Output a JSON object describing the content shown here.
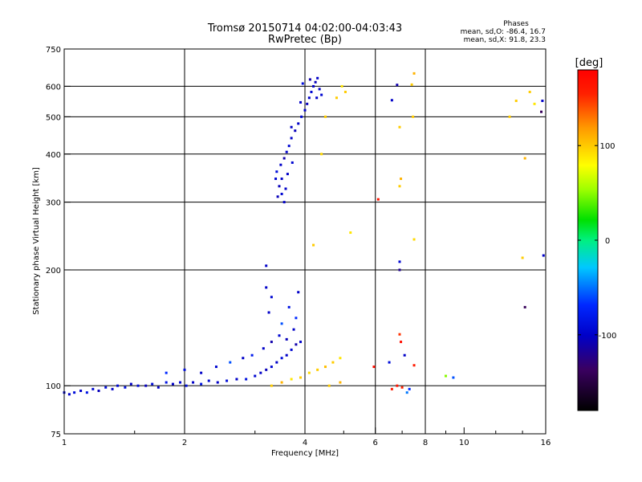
{
  "chart_data": {
    "type": "scatter",
    "title": "Tromsø 20150714 04:02:00-04:03:43",
    "subtitle": "RwPretec (Bp)",
    "xlabel": "Frequency [MHz]",
    "ylabel": "Stationary phase Virtual Height [km]",
    "x_scale": "log",
    "y_scale": "log",
    "xlim": [
      1,
      16
    ],
    "ylim": [
      75,
      750
    ],
    "x_ticks": [
      1,
      2,
      4,
      6,
      8,
      10,
      16
    ],
    "x_tick_labels": [
      "1",
      "2",
      "4",
      "6",
      "8",
      "10",
      "16"
    ],
    "y_ticks": [
      75,
      100,
      200,
      300,
      400,
      500,
      600,
      750
    ],
    "y_tick_labels": [
      "75",
      "100",
      "200",
      "300",
      "400",
      "500",
      "600",
      "750"
    ],
    "x_gridlines": [
      2,
      4,
      6,
      8
    ],
    "y_gridlines": [
      100,
      200,
      300,
      400,
      500,
      600
    ],
    "minor_x_ticks": [
      1.5,
      3,
      5,
      7,
      9,
      12,
      14
    ],
    "color_metric": "phase [deg]",
    "stats_header": "Phases",
    "stats_o": "mean, sd,O: -86.4, 16.7",
    "stats_x": "mean, sd,X:  91.8, 23.3",
    "colorbar": {
      "label": "[deg]",
      "range": [
        -180,
        180
      ],
      "ticks": [
        100,
        0,
        -100
      ],
      "tick_labels": [
        "100",
        "0",
        "-100"
      ]
    },
    "series": [
      {
        "points": [
          [
            1.0,
            96,
            -95
          ],
          [
            1.03,
            95,
            -100
          ],
          [
            1.06,
            96,
            -90
          ],
          [
            1.1,
            97,
            -100
          ],
          [
            1.14,
            96,
            -85
          ],
          [
            1.18,
            98,
            -95
          ],
          [
            1.22,
            97,
            -105
          ],
          [
            1.27,
            99,
            -90
          ],
          [
            1.32,
            98,
            -100
          ],
          [
            1.36,
            100,
            -95
          ],
          [
            1.42,
            99,
            -88
          ],
          [
            1.47,
            101,
            -100
          ],
          [
            1.53,
            100,
            -92
          ],
          [
            1.6,
            100,
            -104
          ],
          [
            1.66,
            101,
            -90
          ],
          [
            1.72,
            99,
            -100
          ],
          [
            1.8,
            102,
            -86
          ],
          [
            1.87,
            101,
            -100
          ],
          [
            1.95,
            102,
            -95
          ],
          [
            2.02,
            100,
            -90
          ],
          [
            2.1,
            102,
            -100
          ],
          [
            2.2,
            101,
            -85
          ],
          [
            2.3,
            103,
            -95
          ],
          [
            2.42,
            102,
            -100
          ],
          [
            2.55,
            103,
            -92
          ],
          [
            2.7,
            104,
            -100
          ],
          [
            2.85,
            104,
            -88
          ],
          [
            3.0,
            106,
            -95
          ],
          [
            3.1,
            108,
            -100
          ],
          [
            3.2,
            110,
            -105
          ],
          [
            3.3,
            112,
            -95
          ],
          [
            3.4,
            115,
            -100
          ],
          [
            3.5,
            118,
            -90
          ],
          [
            3.6,
            120,
            -100
          ],
          [
            3.7,
            124,
            -95
          ],
          [
            3.8,
            128,
            -110
          ],
          [
            3.9,
            130,
            -100
          ],
          [
            1.8,
            108,
            -70
          ],
          [
            2.0,
            110,
            -90
          ],
          [
            2.2,
            108,
            -100
          ],
          [
            2.4,
            112,
            -95
          ],
          [
            2.6,
            115,
            -60
          ],
          [
            2.8,
            118,
            -100
          ],
          [
            2.95,
            120,
            -80
          ],
          [
            3.15,
            125,
            -100
          ],
          [
            3.3,
            130,
            -110
          ],
          [
            3.45,
            135,
            -95
          ],
          [
            3.6,
            132,
            -105
          ],
          [
            3.75,
            140,
            -100
          ],
          [
            3.25,
            155,
            -100
          ],
          [
            3.3,
            170,
            -95
          ],
          [
            3.2,
            180,
            -100
          ],
          [
            3.65,
            160,
            -85
          ],
          [
            3.8,
            150,
            -70
          ],
          [
            3.85,
            175,
            -100
          ],
          [
            3.2,
            205,
            -100
          ],
          [
            3.5,
            145,
            -60
          ]
        ]
      },
      {
        "points": [
          [
            3.55,
            300,
            -100
          ],
          [
            3.5,
            315,
            -95
          ],
          [
            3.45,
            330,
            -105
          ],
          [
            3.5,
            345,
            -100
          ],
          [
            3.4,
            360,
            -90
          ],
          [
            3.48,
            375,
            -100
          ],
          [
            3.55,
            390,
            -110
          ],
          [
            3.6,
            405,
            -100
          ],
          [
            3.65,
            420,
            -95
          ],
          [
            3.7,
            440,
            -100
          ],
          [
            3.78,
            460,
            -105
          ],
          [
            3.85,
            480,
            -100
          ],
          [
            3.92,
            500,
            -95
          ],
          [
            4.0,
            520,
            -100
          ],
          [
            4.05,
            540,
            -105
          ],
          [
            4.1,
            560,
            -100
          ],
          [
            4.15,
            580,
            -95
          ],
          [
            4.2,
            600,
            -100
          ],
          [
            4.25,
            615,
            -105
          ],
          [
            4.3,
            630,
            -100
          ],
          [
            3.95,
            610,
            -90
          ],
          [
            4.35,
            590,
            -100
          ],
          [
            4.4,
            570,
            -95
          ],
          [
            3.62,
            355,
            -100
          ],
          [
            3.72,
            380,
            -95
          ],
          [
            3.58,
            325,
            -100
          ],
          [
            3.42,
            310,
            -105
          ],
          [
            3.9,
            545,
            -100
          ],
          [
            4.12,
            625,
            -110
          ],
          [
            4.28,
            560,
            -100
          ],
          [
            3.7,
            470,
            -100
          ],
          [
            3.38,
            345,
            -95
          ]
        ]
      },
      {
        "points": [
          [
            3.3,
            100,
            100
          ],
          [
            3.5,
            102,
            110
          ],
          [
            3.7,
            104,
            90
          ],
          [
            3.9,
            105,
            100
          ],
          [
            4.1,
            108,
            95
          ],
          [
            4.3,
            110,
            100
          ],
          [
            4.5,
            112,
            105
          ],
          [
            4.7,
            115,
            100
          ],
          [
            4.9,
            118,
            90
          ],
          [
            4.6,
            100,
            100
          ],
          [
            4.9,
            102,
            110
          ],
          [
            5.05,
            580,
            100
          ],
          [
            4.95,
            600,
            90
          ],
          [
            4.8,
            560,
            100
          ],
          [
            4.4,
            400,
            95
          ],
          [
            4.5,
            500,
            100
          ],
          [
            4.2,
            232,
            100
          ],
          [
            5.2,
            250,
            90
          ],
          [
            7.5,
            648,
            110
          ],
          [
            7.4,
            606,
            100
          ],
          [
            7.45,
            500,
            100
          ],
          [
            6.9,
            470,
            100
          ],
          [
            6.95,
            345,
            110
          ],
          [
            6.9,
            330,
            100
          ],
          [
            7.5,
            240,
            95
          ],
          [
            13.5,
            550,
            100
          ],
          [
            13.0,
            500,
            100
          ],
          [
            14.2,
            390,
            110
          ],
          [
            15.0,
            540,
            90
          ],
          [
            14.6,
            580,
            100
          ],
          [
            14.0,
            215,
            100
          ]
        ]
      },
      {
        "points": [
          [
            6.6,
            98,
            160
          ],
          [
            6.8,
            100,
            165
          ],
          [
            7.0,
            99,
            155
          ],
          [
            6.95,
            130,
            170
          ],
          [
            6.9,
            136,
            150
          ],
          [
            7.5,
            113,
            160
          ],
          [
            6.1,
            305,
            165
          ],
          [
            5.95,
            112,
            170
          ]
        ]
      },
      {
        "points": [
          [
            6.8,
            605,
            -110
          ],
          [
            6.6,
            552,
            -100
          ],
          [
            6.9,
            210,
            -95
          ],
          [
            6.9,
            200,
            -120
          ],
          [
            7.3,
            98,
            -70
          ],
          [
            7.2,
            96,
            -50
          ],
          [
            9.0,
            106,
            50
          ],
          [
            9.4,
            105,
            -60
          ],
          [
            14.2,
            160,
            -140
          ],
          [
            15.6,
            515,
            -140
          ],
          [
            15.7,
            550,
            -100
          ],
          [
            15.8,
            218,
            -100
          ],
          [
            7.1,
            120,
            -100
          ],
          [
            6.5,
            115,
            -90
          ]
        ]
      }
    ]
  }
}
